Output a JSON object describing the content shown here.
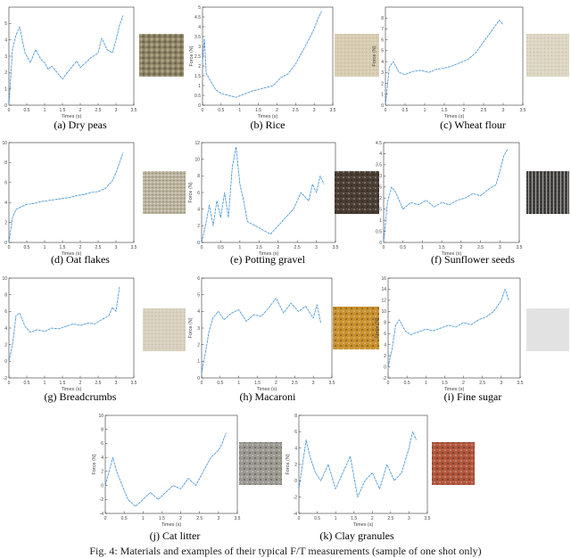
{
  "figure_caption": "Fig. 4: Materials and examples of their typical F/T measurements (sample of one shot only)",
  "colors": {
    "line": "#3a8fd6",
    "axis": "#333333",
    "tick_text": "#444444"
  },
  "chart_data": [
    {
      "type": "line",
      "caption": "(a) Dry peas",
      "xlabel": "Times (s)",
      "ylabel": "Force (N)",
      "xlim": [
        0,
        3.5
      ],
      "ylim": [
        0,
        6
      ],
      "xticks": [
        0,
        0.5,
        1,
        1.5,
        2,
        2.5,
        3,
        3.5
      ],
      "xtick_labels": [
        "0",
        "0.5",
        "1",
        "1.5",
        "2",
        "2.5",
        "3",
        "3.5"
      ],
      "yticks": [
        0,
        1,
        2,
        3,
        4,
        5
      ],
      "ytick_labels": [
        "0",
        "1",
        "2",
        "3",
        "4",
        "5"
      ],
      "swatch": {
        "color": "#8b8266",
        "texture": "dots"
      },
      "series": [
        {
          "x": [
            0,
            0.1,
            0.2,
            0.3,
            0.45,
            0.6,
            0.75,
            0.9,
            1.0,
            1.1,
            1.2,
            1.35,
            1.5,
            1.6,
            1.75,
            1.9,
            2.0,
            2.1,
            2.3,
            2.5,
            2.6,
            2.75,
            2.9,
            3.0,
            3.1,
            3.2
          ],
          "y": [
            0,
            3.4,
            4.3,
            4.8,
            3.2,
            2.6,
            3.4,
            2.8,
            2.6,
            2.2,
            2.4,
            2.0,
            1.6,
            1.9,
            2.3,
            2.7,
            2.3,
            2.5,
            2.9,
            3.2,
            4.1,
            3.4,
            3.2,
            4.0,
            4.9,
            5.5
          ]
        }
      ]
    },
    {
      "type": "line",
      "caption": "(b) Rice",
      "xlabel": "Times (s)",
      "ylabel": "Force (N)",
      "xlim": [
        0,
        3.5
      ],
      "ylim": [
        0,
        5
      ],
      "xticks": [
        0,
        0.5,
        1,
        1.5,
        2,
        2.5,
        3,
        3.5
      ],
      "xtick_labels": [
        "0",
        "0.5",
        "1",
        "1.5",
        "2",
        "2.5",
        "3",
        "3.5"
      ],
      "yticks": [
        0,
        0.5,
        1,
        1.5,
        2,
        2.5,
        3,
        3.5,
        4,
        4.5,
        5
      ],
      "ytick_labels": [
        "0",
        "0.5",
        "1",
        "1.5",
        "2",
        "2.5",
        "3",
        "3.5",
        "4",
        "4.5",
        "5"
      ],
      "swatch": {
        "color": "#d8cdb2",
        "texture": "fine"
      },
      "series": [
        {
          "x": [
            0,
            0.05,
            0.1,
            0.2,
            0.35,
            0.5,
            0.7,
            0.9,
            1.1,
            1.3,
            1.5,
            1.7,
            1.9,
            2.1,
            2.3,
            2.5,
            2.7,
            2.9,
            3.0,
            3.1,
            3.2
          ],
          "y": [
            2.2,
            3.4,
            1.6,
            1.3,
            0.8,
            0.6,
            0.5,
            0.4,
            0.55,
            0.7,
            0.8,
            0.9,
            1.0,
            1.4,
            1.6,
            2.1,
            2.8,
            3.5,
            3.9,
            4.4,
            4.8
          ]
        }
      ]
    },
    {
      "type": "line",
      "caption": "(c) Wheat flour",
      "xlabel": "Times (s)",
      "ylabel": "Force (N)",
      "xlim": [
        0,
        3.5
      ],
      "ylim": [
        0,
        9
      ],
      "xticks": [
        0,
        0.5,
        1,
        1.5,
        2,
        2.5,
        3,
        3.5
      ],
      "xtick_labels": [
        "0",
        "0.5",
        "1",
        "1.5",
        "2",
        "2.5",
        "3",
        "3.5"
      ],
      "yticks": [
        0,
        1,
        2,
        3,
        4,
        5,
        6,
        7,
        8
      ],
      "ytick_labels": [
        "0",
        "1",
        "2",
        "3",
        "4",
        "5",
        "6",
        "7",
        "8"
      ],
      "swatch": {
        "color": "#dcd6c2",
        "texture": "fine"
      },
      "series": [
        {
          "x": [
            0,
            0.1,
            0.2,
            0.35,
            0.5,
            0.7,
            0.9,
            1.1,
            1.3,
            1.5,
            1.7,
            1.9,
            2.1,
            2.3,
            2.5,
            2.6,
            2.7,
            2.8,
            2.9,
            3.0
          ],
          "y": [
            0,
            3.5,
            4.0,
            3.0,
            2.8,
            3.1,
            3.2,
            3.0,
            3.3,
            3.4,
            3.6,
            3.9,
            4.2,
            4.8,
            5.8,
            6.3,
            6.8,
            7.3,
            7.8,
            7.4
          ]
        }
      ]
    },
    {
      "type": "line",
      "caption": "(d) Oat flakes",
      "xlabel": "Times (s)",
      "ylabel": "Force (N)",
      "xlim": [
        0,
        3.5
      ],
      "ylim": [
        0,
        10
      ],
      "xticks": [
        0,
        0.5,
        1,
        1.5,
        2,
        2.5,
        3,
        3.5
      ],
      "xtick_labels": [
        "0",
        "0.5",
        "1",
        "1.5",
        "2",
        "2.5",
        "3",
        "3.5"
      ],
      "yticks": [
        0,
        2,
        4,
        6,
        8,
        10
      ],
      "ytick_labels": [
        "0",
        "2",
        "4",
        "6",
        "8",
        "10"
      ],
      "swatch": {
        "color": "#bbb49e",
        "texture": "flakes"
      },
      "series": [
        {
          "x": [
            0,
            0.1,
            0.2,
            0.35,
            0.5,
            0.7,
            0.9,
            1.1,
            1.3,
            1.5,
            1.7,
            1.9,
            2.1,
            2.3,
            2.5,
            2.7,
            2.9,
            3.0,
            3.1,
            3.2
          ],
          "y": [
            0,
            2.5,
            3.3,
            3.6,
            3.8,
            3.9,
            4.1,
            4.2,
            4.3,
            4.4,
            4.5,
            4.7,
            4.8,
            5.0,
            5.1,
            5.4,
            6.2,
            7.0,
            8.0,
            9.0
          ]
        }
      ]
    },
    {
      "type": "line",
      "caption": "(e) Potting gravel",
      "xlabel": "Times (s)",
      "ylabel": "Force (N)",
      "xlim": [
        0,
        3.5
      ],
      "ylim": [
        0,
        12
      ],
      "xticks": [
        0,
        0.5,
        1,
        1.5,
        2,
        2.5,
        3,
        3.5
      ],
      "xtick_labels": [
        "0",
        "0.5",
        "1",
        "1.5",
        "2",
        "2.5",
        "3",
        "3.5"
      ],
      "yticks": [
        0,
        2,
        4,
        6,
        8,
        10,
        12
      ],
      "ytick_labels": [
        "0",
        "2",
        "4",
        "6",
        "8",
        "10",
        "12"
      ],
      "swatch": {
        "color": "#4a3d33",
        "texture": "coarse"
      },
      "series": [
        {
          "x": [
            0,
            0.1,
            0.2,
            0.3,
            0.4,
            0.5,
            0.6,
            0.7,
            0.8,
            0.9,
            1.0,
            1.1,
            1.2,
            1.4,
            1.6,
            1.8,
            2.0,
            2.2,
            2.4,
            2.6,
            2.8,
            2.9,
            3.0,
            3.1,
            3.2
          ],
          "y": [
            0,
            2,
            4.5,
            2,
            5,
            3,
            6,
            3,
            9,
            11.5,
            7,
            5,
            2.5,
            2,
            1.5,
            1,
            2,
            3,
            4,
            6,
            5,
            7,
            6,
            8,
            7
          ]
        }
      ]
    },
    {
      "type": "line",
      "caption": "(f) Sunflower seeds",
      "xlabel": "Times (s)",
      "ylabel": "Force (N)",
      "xlim": [
        0,
        3.5
      ],
      "ylim": [
        0,
        4.5
      ],
      "xticks": [
        0,
        0.5,
        1,
        1.5,
        2,
        2.5,
        3,
        3.5
      ],
      "xtick_labels": [
        "0",
        "0.5",
        "1",
        "1.5",
        "2",
        "2.5",
        "3",
        "3.5"
      ],
      "yticks": [
        0,
        0.5,
        1,
        1.5,
        2,
        2.5,
        3,
        3.5,
        4,
        4.5
      ],
      "ytick_labels": [
        "0",
        "0.5",
        "1",
        "1.5",
        "2",
        "2.5",
        "3",
        "3.5",
        "4",
        "4.5"
      ],
      "swatch": {
        "color": "#4b4a48",
        "texture": "seeds"
      },
      "series": [
        {
          "x": [
            0,
            0.1,
            0.2,
            0.3,
            0.5,
            0.7,
            0.9,
            1.1,
            1.3,
            1.5,
            1.7,
            1.9,
            2.1,
            2.3,
            2.5,
            2.7,
            2.9,
            3.0,
            3.1,
            3.2
          ],
          "y": [
            0,
            1.8,
            2.5,
            2.3,
            1.5,
            1.8,
            1.7,
            1.9,
            1.6,
            1.8,
            1.7,
            1.9,
            2.0,
            2.2,
            2.1,
            2.4,
            2.6,
            3.2,
            3.9,
            4.2
          ]
        }
      ]
    },
    {
      "type": "line",
      "caption": "(g) Breadcrumbs",
      "xlabel": "Times (s)",
      "ylabel": "Force (N)",
      "xlim": [
        0,
        3.5
      ],
      "ylim": [
        -2,
        10
      ],
      "xticks": [
        0,
        0.5,
        1,
        1.5,
        2,
        2.5,
        3,
        3.5
      ],
      "xtick_labels": [
        "0",
        "0.5",
        "1",
        "1.5",
        "2",
        "2.5",
        "3",
        "3.5"
      ],
      "yticks": [
        -2,
        0,
        2,
        4,
        6,
        8,
        10
      ],
      "ytick_labels": [
        "-2",
        "0",
        "2",
        "4",
        "6",
        "8",
        "10"
      ],
      "swatch": {
        "color": "#d8d1bf",
        "texture": "fine"
      },
      "series": [
        {
          "x": [
            0,
            0.1,
            0.2,
            0.3,
            0.45,
            0.6,
            0.8,
            1.0,
            1.2,
            1.4,
            1.6,
            1.8,
            2.0,
            2.2,
            2.4,
            2.6,
            2.8,
            2.9,
            3.0,
            3.1
          ],
          "y": [
            0,
            2,
            5.5,
            5.8,
            4.2,
            3.5,
            3.8,
            3.6,
            4,
            3.9,
            4.2,
            4.5,
            4.3,
            4.6,
            4.5,
            5,
            5.5,
            6.5,
            6,
            9
          ]
        }
      ]
    },
    {
      "type": "line",
      "caption": "(h) Macaroni",
      "xlabel": "Times (s)",
      "ylabel": "Force (N)",
      "xlim": [
        0,
        3.5
      ],
      "ylim": [
        0,
        6
      ],
      "xticks": [
        0,
        0.5,
        1,
        1.5,
        2,
        2.5,
        3,
        3.5
      ],
      "xtick_labels": [
        "0",
        "0.5",
        "1",
        "1.5",
        "2",
        "2.5",
        "3",
        "3.5"
      ],
      "yticks": [
        0,
        1,
        2,
        3,
        4,
        5,
        6
      ],
      "ytick_labels": [
        "0",
        "1",
        "2",
        "3",
        "4",
        "5",
        "6"
      ],
      "swatch": {
        "color": "#c8902e",
        "texture": "coarse"
      },
      "series": [
        {
          "x": [
            0,
            0.1,
            0.2,
            0.3,
            0.45,
            0.6,
            0.8,
            1.0,
            1.2,
            1.4,
            1.6,
            1.8,
            2.0,
            2.2,
            2.4,
            2.6,
            2.8,
            3.0,
            3.1,
            3.2
          ],
          "y": [
            0.3,
            1.5,
            2.8,
            3.6,
            4.0,
            3.5,
            3.9,
            4.1,
            3.4,
            3.8,
            3.7,
            4.2,
            4.8,
            3.9,
            4.5,
            4.0,
            4.3,
            3.6,
            4.4,
            3.3
          ]
        }
      ]
    },
    {
      "type": "line",
      "caption": "(i) Fine sugar",
      "xlabel": "Times (s)",
      "ylabel": "Force (N)",
      "xlim": [
        0,
        3.5
      ],
      "ylim": [
        -2,
        16
      ],
      "xticks": [
        0,
        0.5,
        1,
        1.5,
        2,
        2.5,
        3,
        3.5
      ],
      "xtick_labels": [
        "0",
        "0.5",
        "1",
        "1.5",
        "2",
        "2.5",
        "3",
        "3.5"
      ],
      "yticks": [
        -2,
        0,
        2,
        4,
        6,
        8,
        10,
        12,
        14,
        16
      ],
      "ytick_labels": [
        "-2",
        "0",
        "2",
        "4",
        "6",
        "8",
        "10",
        "12",
        "14",
        "16"
      ],
      "swatch": {
        "color": "#e2e2e2",
        "texture": "plain"
      },
      "series": [
        {
          "x": [
            0,
            0.1,
            0.2,
            0.3,
            0.45,
            0.6,
            0.8,
            1.0,
            1.2,
            1.4,
            1.6,
            1.8,
            2.0,
            2.2,
            2.4,
            2.6,
            2.8,
            3.0,
            3.1,
            3.2
          ],
          "y": [
            0,
            3,
            7.5,
            8.5,
            6.5,
            5.8,
            6.3,
            6.8,
            6.5,
            7,
            7.5,
            7.2,
            8,
            7.6,
            8.5,
            9,
            10,
            12,
            14,
            12
          ]
        }
      ]
    },
    {
      "type": "line",
      "caption": "(j) Cat litter",
      "xlabel": "Times (s)",
      "ylabel": "Force (N)",
      "xlim": [
        0,
        3.5
      ],
      "ylim": [
        -4,
        10
      ],
      "xticks": [
        0,
        0.5,
        1,
        1.5,
        2,
        2.5,
        3,
        3.5
      ],
      "xtick_labels": [
        "0",
        "0.5",
        "1",
        "1.5",
        "2",
        "2.5",
        "3",
        "3.5"
      ],
      "yticks": [
        -4,
        -2,
        0,
        2,
        4,
        6,
        8,
        10
      ],
      "ytick_labels": [
        "-4",
        "-2",
        "0",
        "2",
        "4",
        "6",
        "8",
        "10"
      ],
      "swatch": {
        "color": "#9a9890",
        "texture": "coarse"
      },
      "series": [
        {
          "x": [
            0,
            0.1,
            0.2,
            0.3,
            0.45,
            0.6,
            0.8,
            1.0,
            1.2,
            1.4,
            1.6,
            1.8,
            2.0,
            2.2,
            2.4,
            2.6,
            2.8,
            3.0,
            3.1,
            3.2
          ],
          "y": [
            0,
            2,
            4,
            2,
            0,
            -2,
            -3,
            -2,
            -1,
            -2,
            -1,
            0,
            -0.5,
            1,
            0,
            2,
            4,
            5,
            6,
            7.5
          ]
        }
      ]
    },
    {
      "type": "line",
      "caption": "(k) Clay granules",
      "xlabel": "Times (s)",
      "ylabel": "Force (N)",
      "xlim": [
        0,
        3.5
      ],
      "ylim": [
        -4,
        8
      ],
      "xticks": [
        0,
        0.5,
        1,
        1.5,
        2,
        2.5,
        3,
        3.5
      ],
      "xtick_labels": [
        "0",
        "0.5",
        "1",
        "1.5",
        "2",
        "2.5",
        "3",
        "3.5"
      ],
      "yticks": [
        -4,
        -2,
        0,
        2,
        4,
        6,
        8
      ],
      "ytick_labels": [
        "-4",
        "-2",
        "0",
        "2",
        "4",
        "6",
        "8"
      ],
      "swatch": {
        "color": "#b0563c",
        "texture": "coarse"
      },
      "series": [
        {
          "x": [
            0,
            0.1,
            0.2,
            0.3,
            0.45,
            0.6,
            0.8,
            1.0,
            1.2,
            1.4,
            1.6,
            1.8,
            2.0,
            2.2,
            2.4,
            2.6,
            2.8,
            3.0,
            3.1,
            3.2
          ],
          "y": [
            -1,
            2,
            5,
            3,
            1,
            0,
            2,
            -1,
            1,
            3,
            -2,
            0,
            1,
            -1,
            2,
            0,
            1,
            4,
            6,
            5
          ]
        }
      ]
    }
  ]
}
